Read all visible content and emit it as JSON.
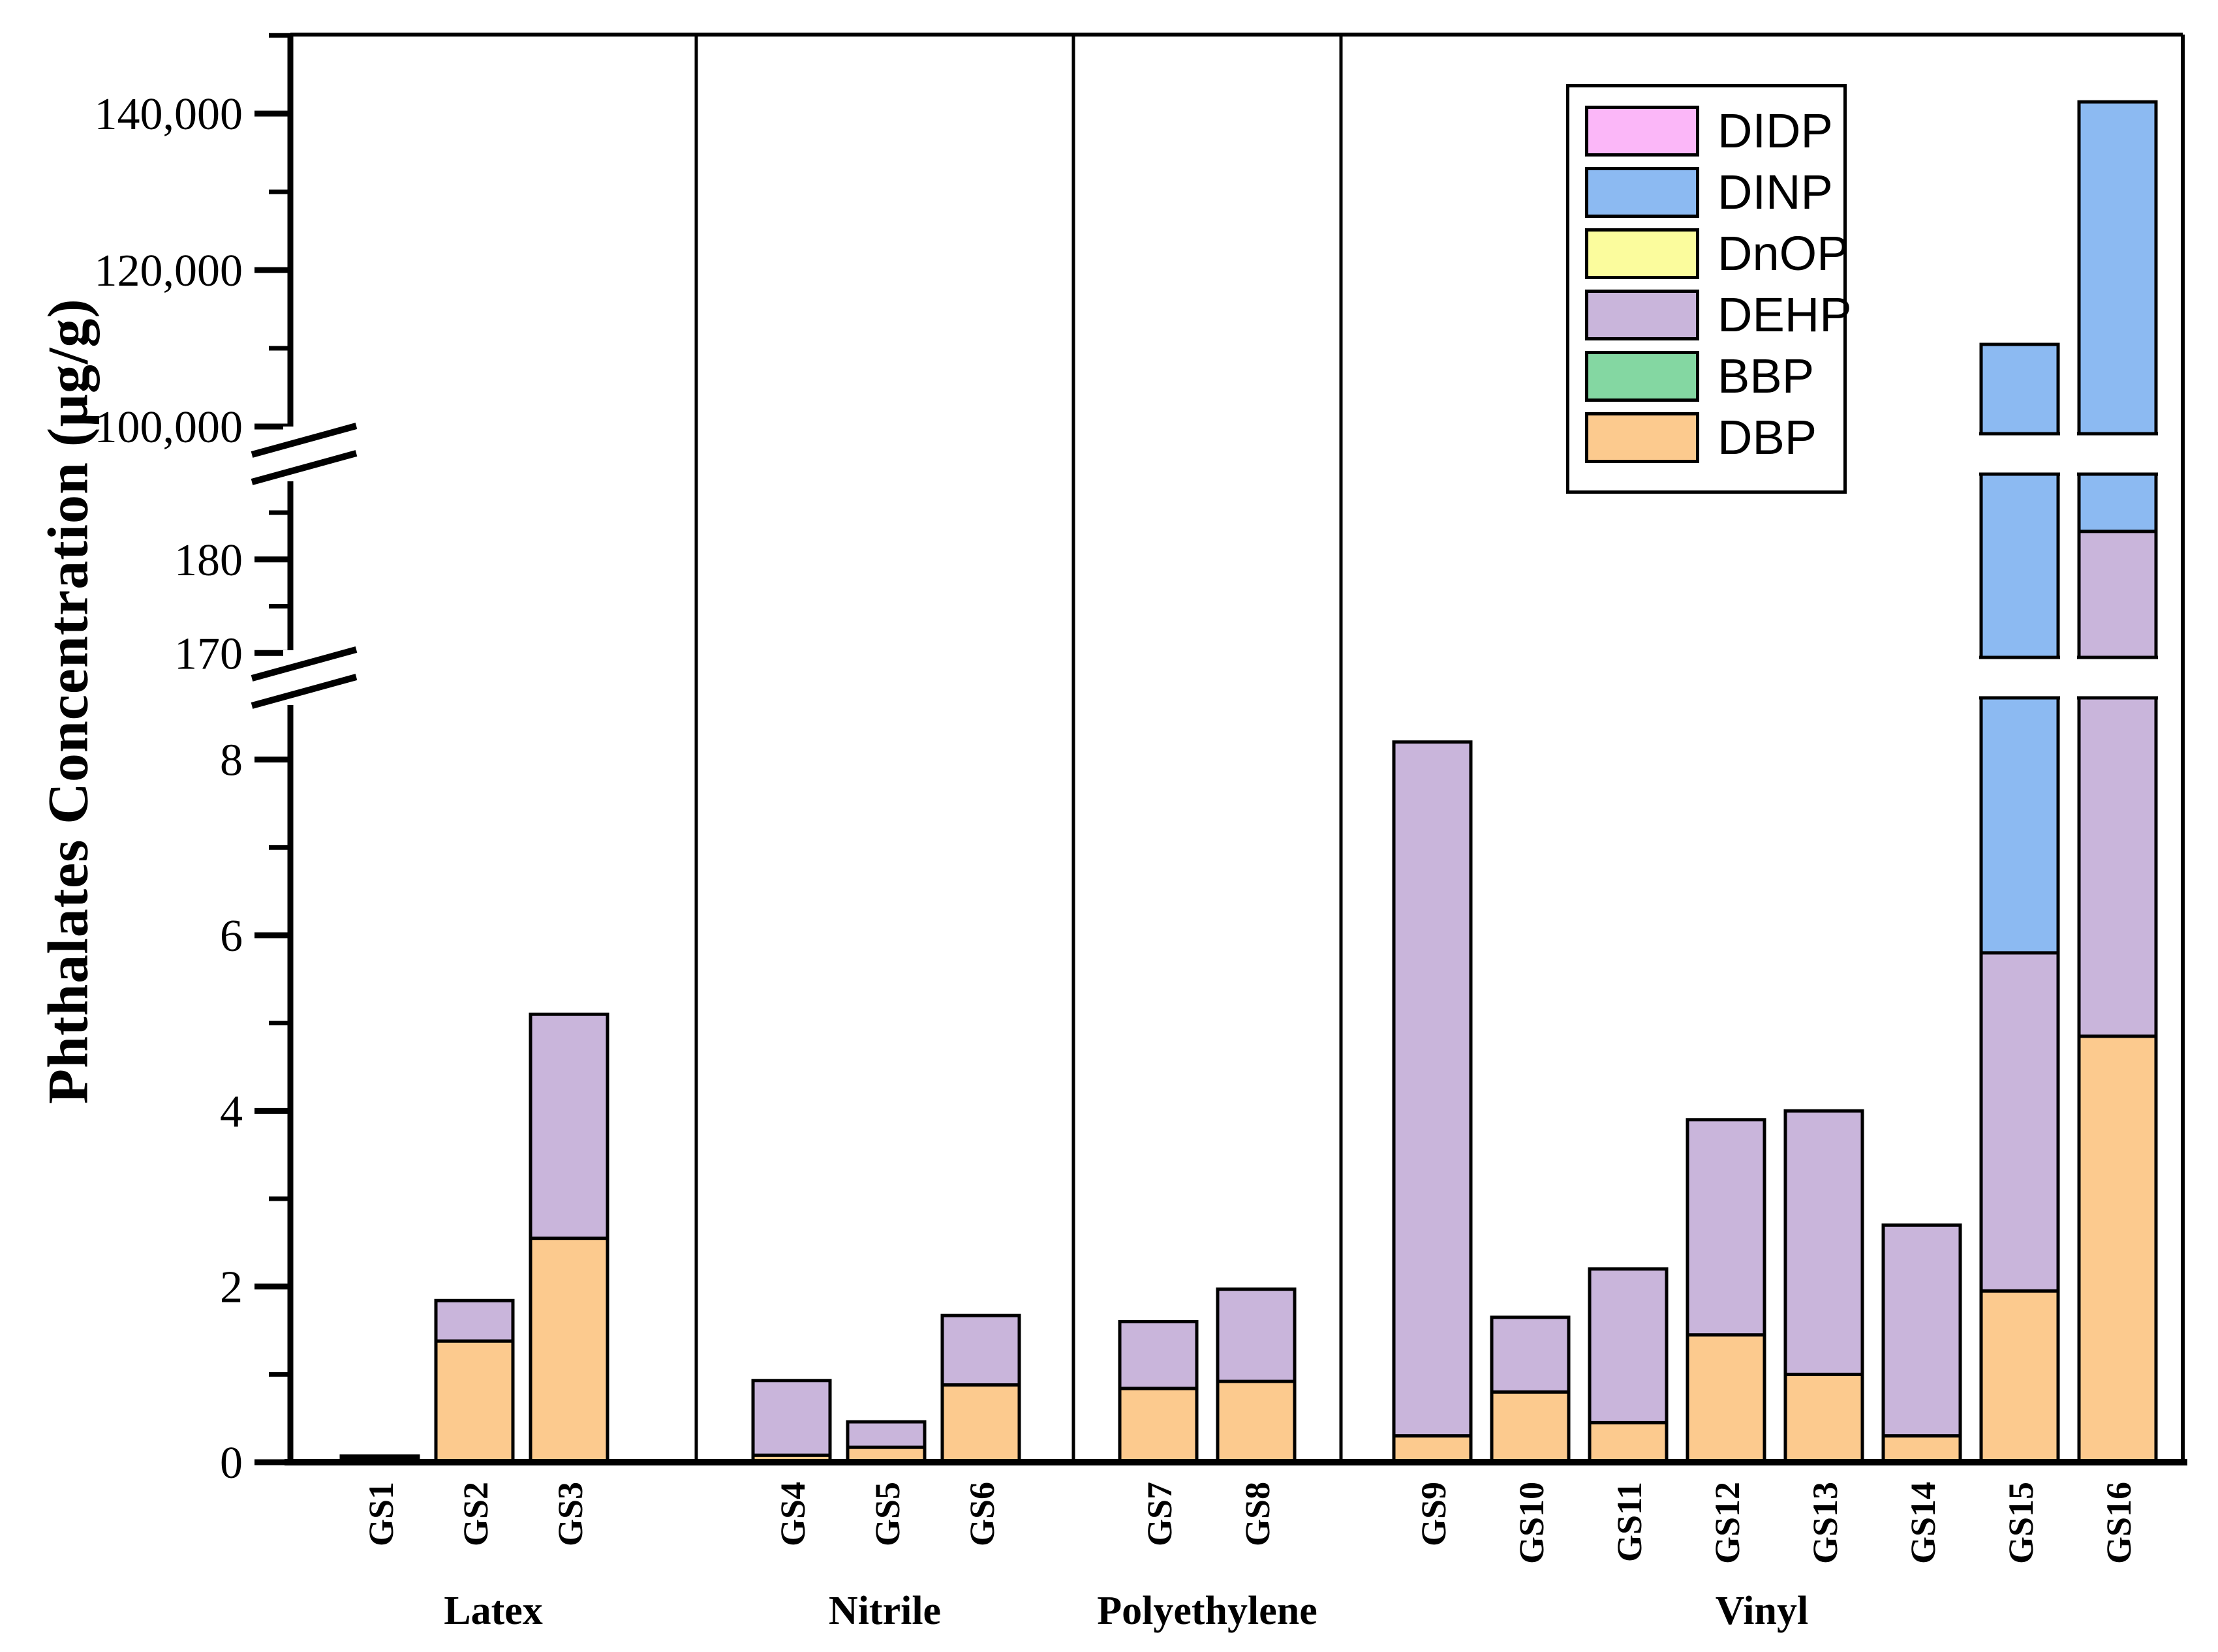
{
  "y_axis": {
    "title": "Phthalates Concentration (µg/g)",
    "major_ticks": [
      {
        "value": 0,
        "label": "0"
      },
      {
        "value": 2,
        "label": "2"
      },
      {
        "value": 4,
        "label": "4"
      },
      {
        "value": 6,
        "label": "6"
      },
      {
        "value": 8,
        "label": "8"
      },
      {
        "value": 170,
        "label": "170"
      },
      {
        "value": 180,
        "label": "180"
      },
      {
        "value": 100000,
        "label": "100,000"
      },
      {
        "value": 120000,
        "label": "120,000"
      },
      {
        "value": 140000,
        "label": "140,000"
      }
    ],
    "minor_ticks": [
      1,
      3,
      5,
      7,
      175,
      185,
      110000,
      130000,
      150000
    ]
  },
  "legend": {
    "entries": [
      {
        "label": "DIDP",
        "color": "#FBB7F8"
      },
      {
        "label": "DINP",
        "color": "#8CBAF2"
      },
      {
        "label": "DnOP",
        "color": "#FBFC9D"
      },
      {
        "label": "DEHP",
        "color": "#C9B5DB"
      },
      {
        "label": "BBP",
        "color": "#84D7A2"
      },
      {
        "label": "DBP",
        "color": "#FCCA8E"
      }
    ]
  },
  "chart_data": {
    "type": "bar",
    "stacked": true,
    "title": "",
    "xlabel": "",
    "ylabel": "Phthalates Concentration (µg/g)",
    "unit": "µg/g",
    "grid": false,
    "legend_position": "top-right-inside",
    "axis_break_note": "y-axis has two breaks: 0-9, 168-190, 94500-150100",
    "ylim_sections": [
      [
        0,
        9
      ],
      [
        168,
        189.6
      ],
      [
        94500,
        150100
      ]
    ],
    "categories": [
      "GS1",
      "GS2",
      "GS3",
      "GS4",
      "GS5",
      "GS6",
      "GS7",
      "GS8",
      "GS9",
      "GS10",
      "GS11",
      "GS12",
      "GS13",
      "GS14",
      "GS15",
      "GS16"
    ],
    "groups": [
      {
        "label": "Latex",
        "categories": [
          "GS1",
          "GS2",
          "GS3"
        ]
      },
      {
        "label": "Nitrile",
        "categories": [
          "GS4",
          "GS5",
          "GS6"
        ]
      },
      {
        "label": "Polyethylene",
        "categories": [
          "GS7",
          "GS8"
        ]
      },
      {
        "label": "Vinyl",
        "categories": [
          "GS9",
          "GS10",
          "GS11",
          "GS12",
          "GS13",
          "GS14",
          "GS15",
          "GS16"
        ]
      }
    ],
    "series": [
      {
        "name": "DBP",
        "color": "#FCCA8E",
        "values": [
          0.04,
          1.38,
          2.55,
          0.08,
          0.17,
          0.88,
          0.84,
          0.92,
          0.3,
          0.8,
          0.45,
          1.45,
          1.0,
          0.3,
          1.95,
          4.85
        ]
      },
      {
        "name": "BBP",
        "color": "#84D7A2",
        "values": [
          0,
          0,
          0,
          0,
          0,
          0,
          0,
          0,
          0,
          0,
          0,
          0,
          0,
          0,
          0,
          0
        ]
      },
      {
        "name": "DEHP",
        "color": "#C9B5DB",
        "values": [
          0.03,
          0.46,
          2.55,
          0.85,
          0.29,
          0.79,
          0.76,
          1.05,
          7.9,
          0.85,
          1.75,
          2.45,
          3.0,
          2.4,
          3.85,
          178.15
        ]
      },
      {
        "name": "DnOP",
        "color": "#FBFC9D",
        "values": [
          0,
          0,
          0,
          0,
          0,
          0,
          0,
          0,
          0,
          0,
          0,
          0,
          0,
          0,
          0,
          0
        ]
      },
      {
        "name": "DINP",
        "color": "#8CBAF2",
        "values": [
          0,
          0,
          0,
          0,
          0,
          0,
          0,
          0,
          0,
          0,
          0,
          0,
          0,
          0,
          110494,
          141317
        ]
      },
      {
        "name": "DIDP",
        "color": "#FBB7F8",
        "values": [
          0,
          0,
          0,
          0,
          0,
          0,
          0,
          0,
          0,
          0,
          0,
          0,
          0,
          0,
          0,
          0
        ]
      }
    ],
    "bar_totals": [
      0.07,
      1.84,
      5.1,
      0.93,
      0.46,
      1.67,
      1.6,
      1.97,
      8.2,
      1.65,
      2.2,
      3.9,
      4.0,
      2.7,
      110500,
      141500
    ]
  },
  "colors": {
    "stroke": "#000000",
    "background": "#ffffff"
  }
}
